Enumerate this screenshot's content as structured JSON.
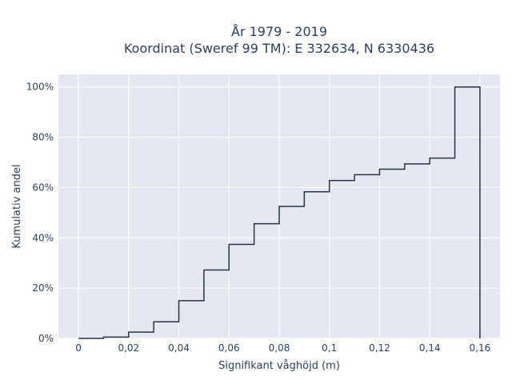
{
  "chart_data": {
    "type": "line",
    "title_line1": "År 1979 - 2019",
    "title_line2": "Koordinat (Sweref 99 TM): E 332634, N 6330436",
    "xlabel": "Signifikant våghöjd (m)",
    "ylabel": "Kumulativ andel",
    "xlim": [
      -0.008,
      0.168
    ],
    "ylim": [
      0,
      1.05
    ],
    "x_ticks": [
      {
        "value": 0,
        "label": "0"
      },
      {
        "value": 0.02,
        "label": "0,02"
      },
      {
        "value": 0.04,
        "label": "0,04"
      },
      {
        "value": 0.06,
        "label": "0,06"
      },
      {
        "value": 0.08,
        "label": "0,08"
      },
      {
        "value": 0.1,
        "label": "0,1"
      },
      {
        "value": 0.12,
        "label": "0,12"
      },
      {
        "value": 0.14,
        "label": "0,14"
      },
      {
        "value": 0.16,
        "label": "0,16"
      }
    ],
    "y_ticks": [
      {
        "value": 0,
        "label": "0%"
      },
      {
        "value": 0.2,
        "label": "20%"
      },
      {
        "value": 0.4,
        "label": "40%"
      },
      {
        "value": 0.6,
        "label": "60%"
      },
      {
        "value": 0.8,
        "label": "80%"
      },
      {
        "value": 1.0,
        "label": "100%"
      }
    ],
    "grid": true,
    "line_color": "#2a3442",
    "plot_background": "#e5e8f0",
    "step_x": [
      0,
      0.01,
      0.02,
      0.03,
      0.04,
      0.05,
      0.06,
      0.07,
      0.08,
      0.09,
      0.1,
      0.11,
      0.12,
      0.13,
      0.14,
      0.15,
      0.16
    ],
    "cumulative_values": [
      0.0,
      0.005,
      0.025,
      0.066,
      0.15,
      0.272,
      0.374,
      0.456,
      0.525,
      0.583,
      0.628,
      0.651,
      0.673,
      0.694,
      0.717,
      1.0
    ]
  }
}
